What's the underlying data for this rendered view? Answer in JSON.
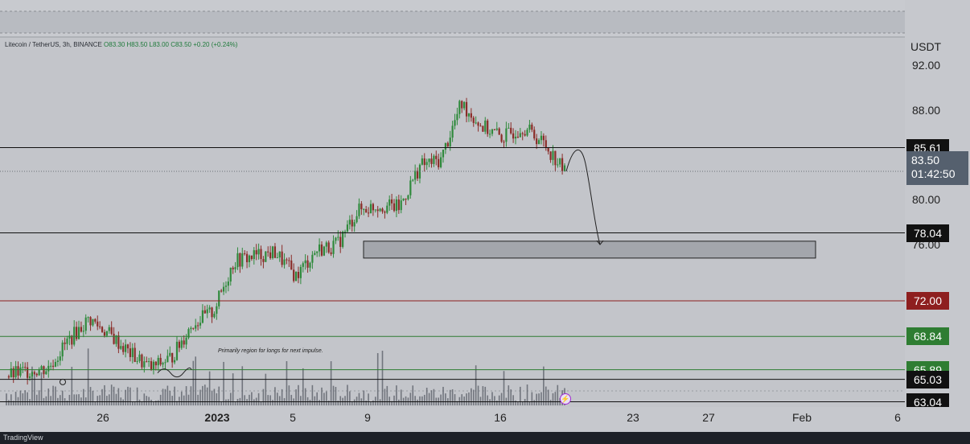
{
  "symbol_legend": {
    "symbol": "Litecoin / TetherUS, 3h, BINANCE",
    "ohlc": "O83.30 H83.50 L83.00 C83.50 +0.20 (+0.24%)"
  },
  "price_scale": {
    "currency": "USDT",
    "ticks": [
      "92.00",
      "88.00",
      "80.00",
      "76.00"
    ],
    "current_price": "83.50",
    "countdown": "01:42:50"
  },
  "levels": [
    {
      "label": "85.61",
      "price": 85.61,
      "color": "#111111"
    },
    {
      "label": "78.04",
      "price": 78.04,
      "color": "#111111"
    },
    {
      "label": "72.00",
      "price": 72.0,
      "color": "#8e1f1f"
    },
    {
      "label": "68.84",
      "price": 68.84,
      "color": "#2e7d32"
    },
    {
      "label": "65.89",
      "price": 65.89,
      "color": "#2e7d32"
    },
    {
      "label": "65.03",
      "price": 65.03,
      "color": "#111111"
    },
    {
      "label": "63.04",
      "price": 63.04,
      "color": "#111111"
    }
  ],
  "time_axis": {
    "labels": [
      "26",
      "2023",
      "5",
      "9",
      "16",
      "23",
      "27",
      "Feb",
      "6"
    ]
  },
  "annotation": "Primarily region for longs for next impulse.",
  "footer": "TradingView",
  "chart_data": {
    "type": "candlestick",
    "title": "Litecoin / TetherUS, 3h, BINANCE",
    "ylabel": "USDT",
    "ylim": [
      62.0,
      94.0
    ],
    "last_close": 83.5,
    "zone": {
      "low": 75.8,
      "high": 77.3
    },
    "projection": [
      85.6,
      77.0
    ],
    "path": [
      {
        "x": "Dec 22",
        "close": 65.3
      },
      {
        "x": "Dec 24",
        "close": 65.8
      },
      {
        "x": "Dec 25",
        "close": 66.0
      },
      {
        "x": "Dec 26",
        "close": 68.5
      },
      {
        "x": "Dec 27",
        "close": 70.4
      },
      {
        "x": "Dec 28",
        "close": 69.0
      },
      {
        "x": "Dec 29",
        "close": 67.3
      },
      {
        "x": "Dec 30",
        "close": 66.0
      },
      {
        "x": "Dec 31",
        "close": 67.0
      },
      {
        "x": "Jan 1",
        "close": 70.0
      },
      {
        "x": "Jan 2",
        "close": 71.0
      },
      {
        "x": "Jan 3",
        "close": 75.5
      },
      {
        "x": "Jan 4",
        "close": 76.0
      },
      {
        "x": "Jan 5",
        "close": 76.3
      },
      {
        "x": "Jan 6",
        "close": 74.2
      },
      {
        "x": "Jan 7",
        "close": 76.5
      },
      {
        "x": "Jan 8",
        "close": 77.0
      },
      {
        "x": "Jan 9",
        "close": 80.0
      },
      {
        "x": "Jan 10",
        "close": 80.5
      },
      {
        "x": "Jan 11",
        "close": 80.3
      },
      {
        "x": "Jan 12",
        "close": 84.0
      },
      {
        "x": "Jan 13",
        "close": 84.5
      },
      {
        "x": "Jan 14",
        "close": 89.5
      },
      {
        "x": "Jan 15",
        "close": 87.5
      },
      {
        "x": "Jan 16",
        "close": 86.5
      },
      {
        "x": "Jan 17",
        "close": 87.5
      },
      {
        "x": "Jan 18",
        "close": 86.0
      },
      {
        "x": "Jan 19",
        "close": 83.5
      }
    ]
  },
  "colors": {
    "up": "#2f8a3c",
    "down": "#8b2c28",
    "volume": "#555a63",
    "zone_fill": "#a3a6ac"
  }
}
